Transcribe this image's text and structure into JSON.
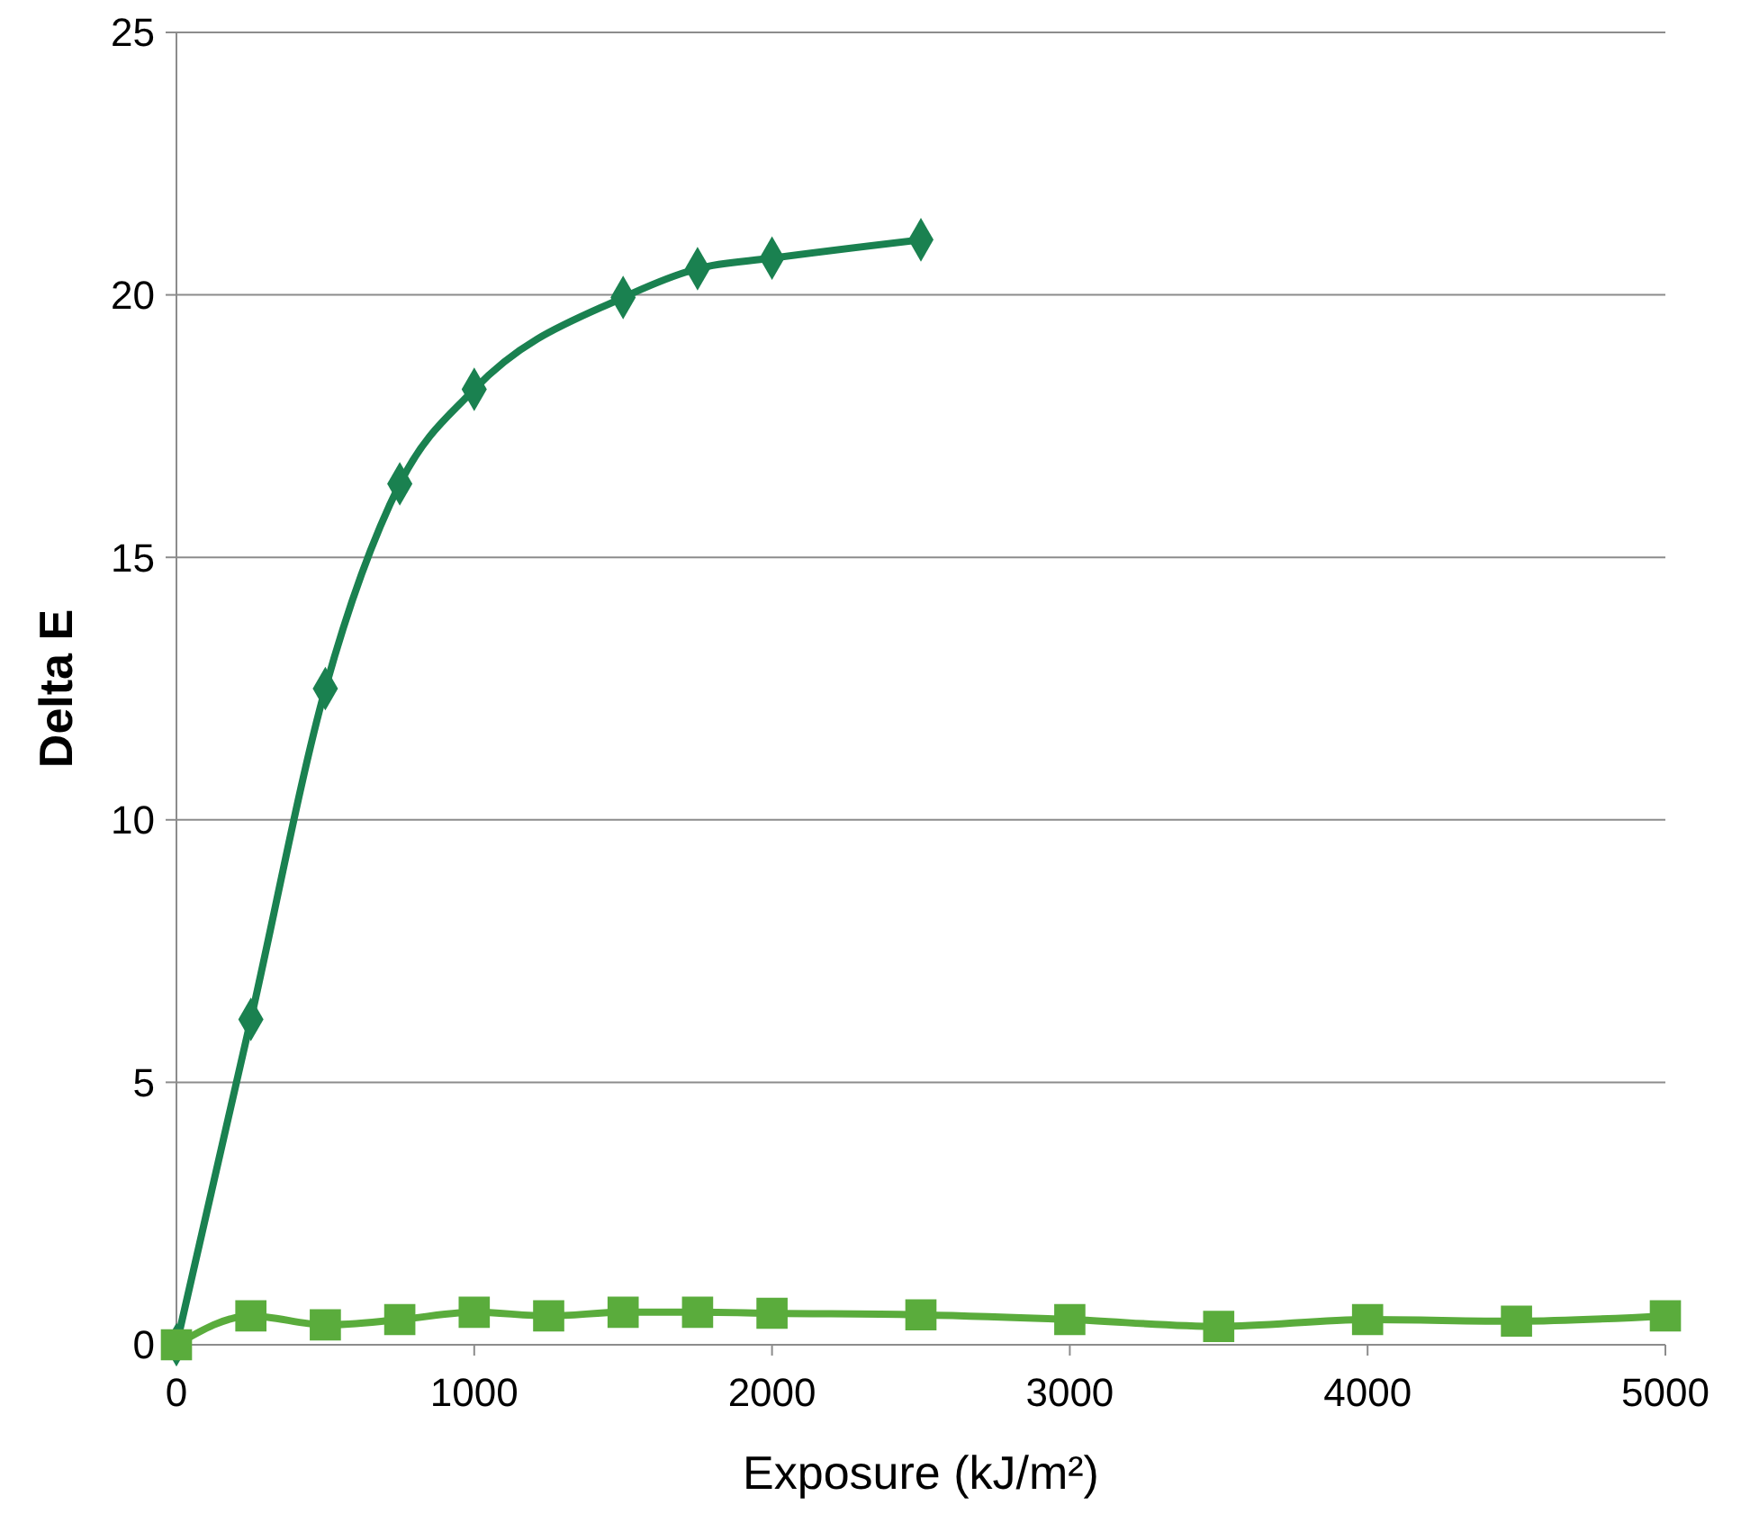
{
  "chart_data": {
    "type": "line",
    "xlabel": "Exposure (kJ/m²)",
    "ylabel": "Delta E",
    "xlim": [
      0,
      5000
    ],
    "xticks": [
      0,
      1000,
      2000,
      3000,
      4000,
      5000
    ],
    "ylim": [
      0,
      25
    ],
    "yticks": [
      0,
      5,
      10,
      15,
      20,
      25
    ],
    "grid": "y",
    "line_style": "solid",
    "series": [
      {
        "color": "#1a8150",
        "marker": "diamond",
        "x": [
          0,
          250,
          500,
          750,
          1000,
          1500,
          1750,
          2000,
          2500
        ],
        "values": [
          0,
          6.2,
          12.5,
          16.4,
          18.2,
          19.95,
          20.5,
          20.7,
          21.05
        ]
      },
      {
        "color": "#5aac3c",
        "marker": "square",
        "x": [
          0,
          250,
          500,
          750,
          1000,
          1250,
          1500,
          1750,
          2000,
          2500,
          3000,
          3500,
          4000,
          4500,
          5000
        ],
        "values": [
          0,
          0.55,
          0.38,
          0.48,
          0.62,
          0.55,
          0.62,
          0.62,
          0.6,
          0.57,
          0.48,
          0.35,
          0.48,
          0.45,
          0.55
        ]
      }
    ]
  }
}
